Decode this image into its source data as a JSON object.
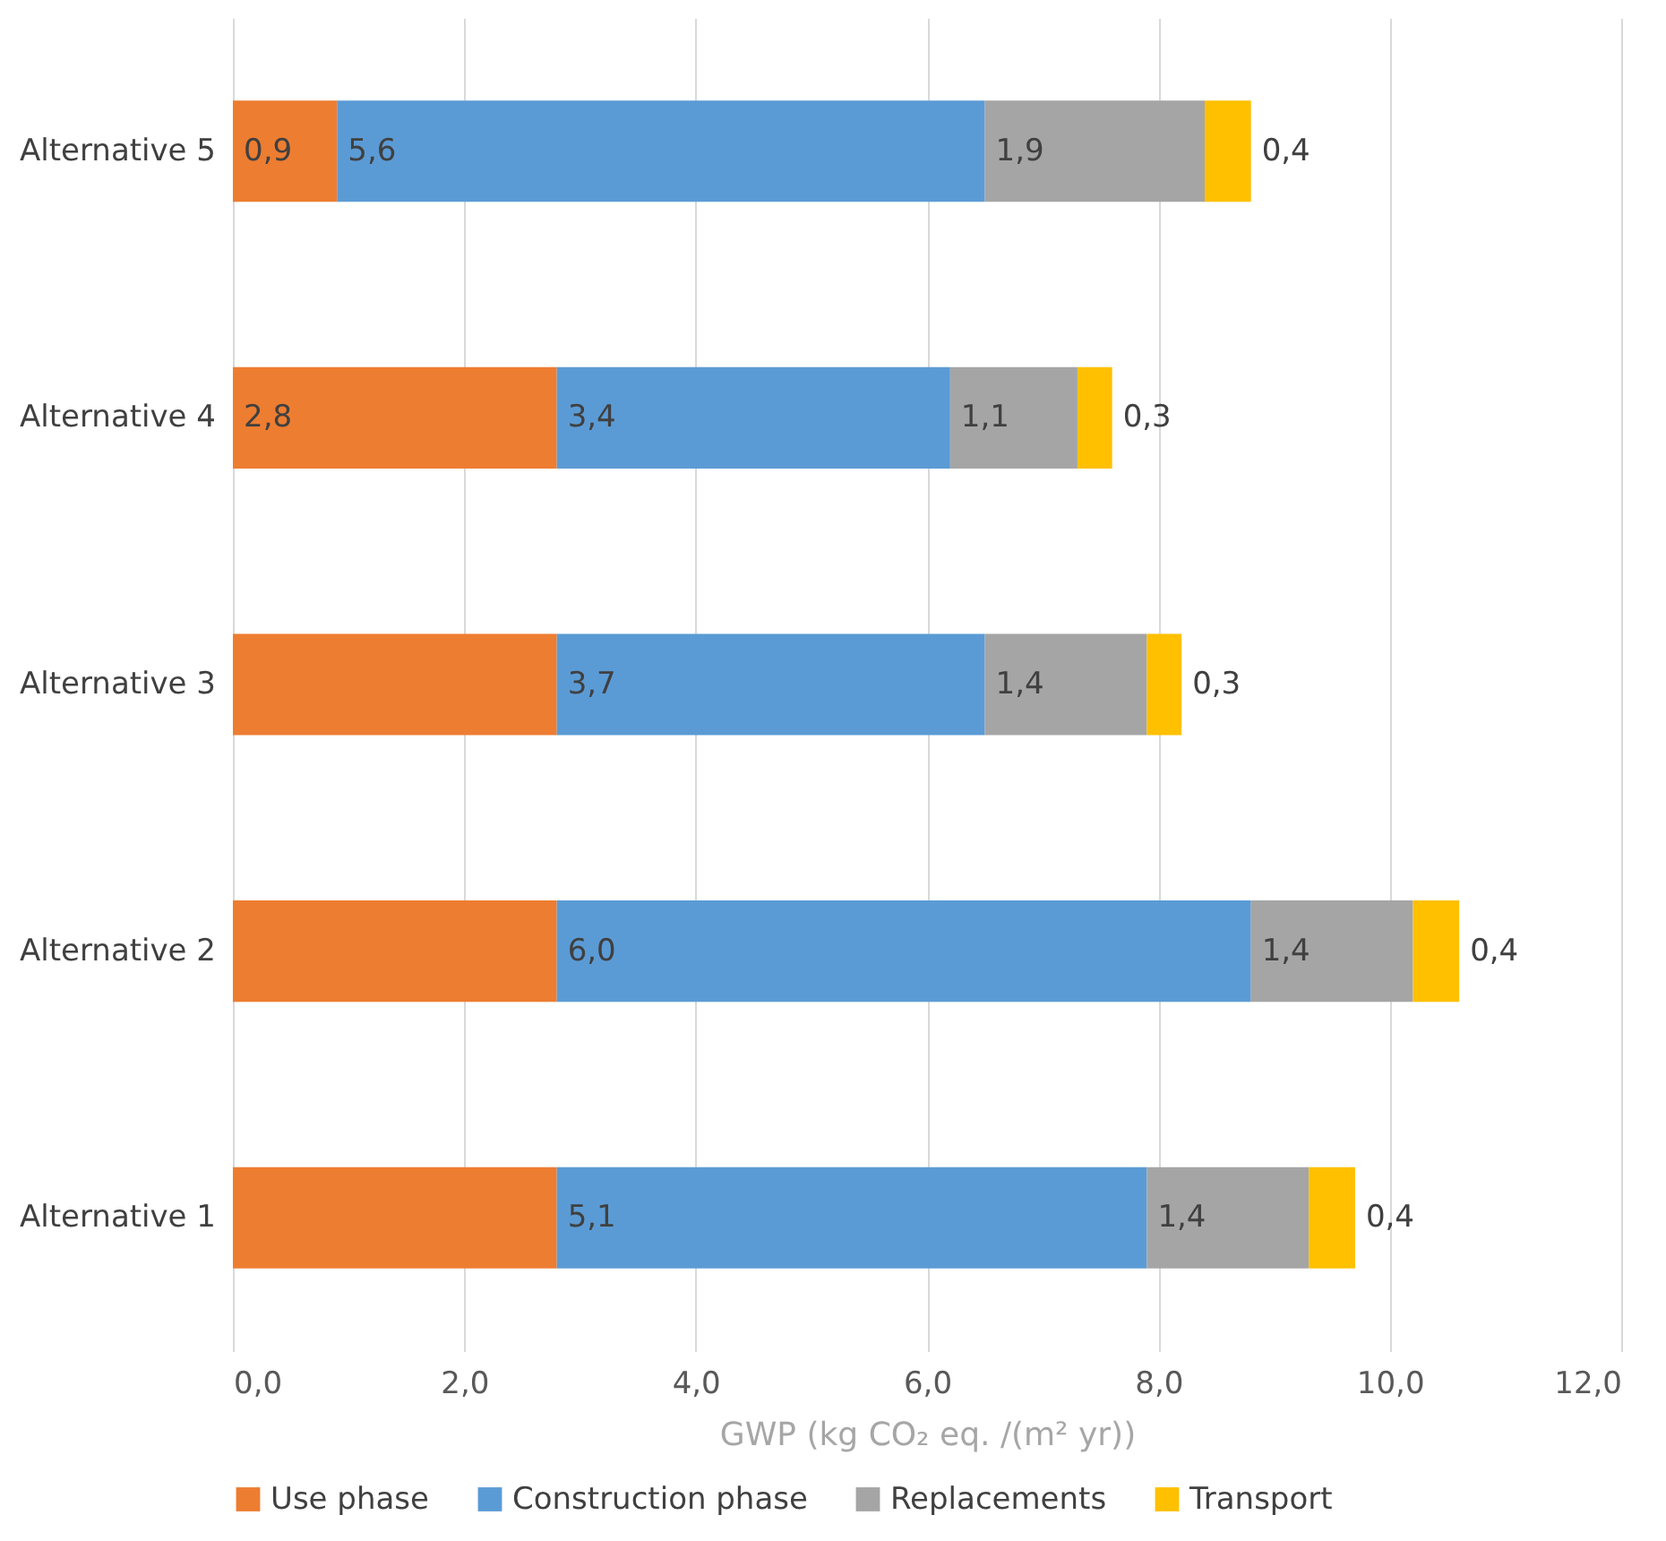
{
  "chart_data": {
    "type": "bar",
    "orientation": "horizontal",
    "stacked": true,
    "categories": [
      "Alternative 5",
      "Alternative 4",
      "Alternative 3",
      "Alternative 2",
      "Alternative 1"
    ],
    "series": [
      {
        "name": "Use phase",
        "color": "#ed7d31",
        "values": [
          0.9,
          2.8,
          2.8,
          2.8,
          2.8
        ],
        "value_labels": [
          "0,9",
          "2,8",
          null,
          null,
          null
        ]
      },
      {
        "name": "Construction phase",
        "color": "#5b9bd5",
        "values": [
          5.6,
          3.4,
          3.7,
          6.0,
          5.1
        ],
        "value_labels": [
          "5,6",
          "3,4",
          "3,7",
          "6,0",
          "5,1"
        ]
      },
      {
        "name": "Replacements",
        "color": "#a5a5a5",
        "values": [
          1.9,
          1.1,
          1.4,
          1.4,
          1.4
        ],
        "value_labels": [
          "1,9",
          "1,1",
          "1,4",
          "1,4",
          "1,4"
        ]
      },
      {
        "name": "Transport",
        "color": "#ffc000",
        "values": [
          0.4,
          0.3,
          0.3,
          0.4,
          0.4
        ],
        "value_labels": [
          "0,4",
          "0,3",
          "0,3",
          "0,4",
          "0,4"
        ]
      }
    ],
    "xlabel": "GWP (kg CO₂ eq. /(m² yr))",
    "xlim": [
      0,
      12
    ],
    "xticks": [
      {
        "value": 0,
        "label": "0,0"
      },
      {
        "value": 2,
        "label": "2,0"
      },
      {
        "value": 4,
        "label": "4,0"
      },
      {
        "value": 6,
        "label": "6,0"
      },
      {
        "value": 8,
        "label": "8,0"
      },
      {
        "value": 10,
        "label": "10,0"
      },
      {
        "value": 12,
        "label": "12,0"
      }
    ],
    "grid": "x",
    "legend": "bottom"
  }
}
